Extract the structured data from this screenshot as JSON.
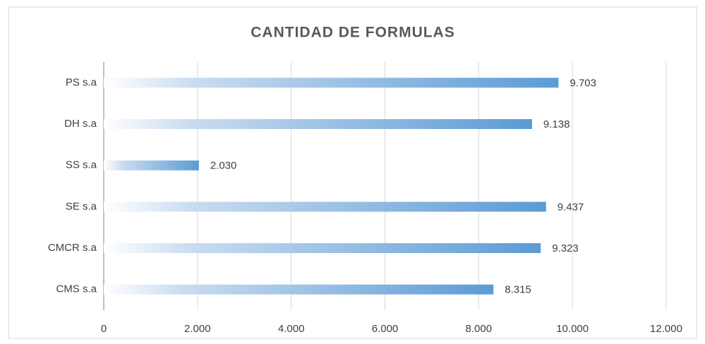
{
  "chart_data": {
    "type": "bar",
    "orientation": "horizontal",
    "title": "CANTIDAD DE FORMULAS",
    "categories": [
      "PS s.a",
      "DH s.a",
      "SS s.a",
      "SE s.a",
      "CMCR s.a",
      "CMS s.a"
    ],
    "values": [
      9703,
      9138,
      2030,
      9437,
      9323,
      8315
    ],
    "value_labels": [
      "9.703",
      "9.138",
      "2.030",
      "9.437",
      "9.323",
      "8.315"
    ],
    "color": "#5b9bd5",
    "xlim": [
      0,
      12000
    ],
    "xticks": [
      0,
      {
        "value": 2000,
        "label": "2.000"
      },
      {
        "value": 4000,
        "label": "4.000"
      },
      {
        "value": 6000,
        "label": "6.000"
      },
      {
        "value": 8000,
        "label": "8.000"
      },
      {
        "value": 10000,
        "label": "10.000"
      },
      {
        "value": 12000,
        "label": "12.000"
      }
    ],
    "grid": true
  }
}
